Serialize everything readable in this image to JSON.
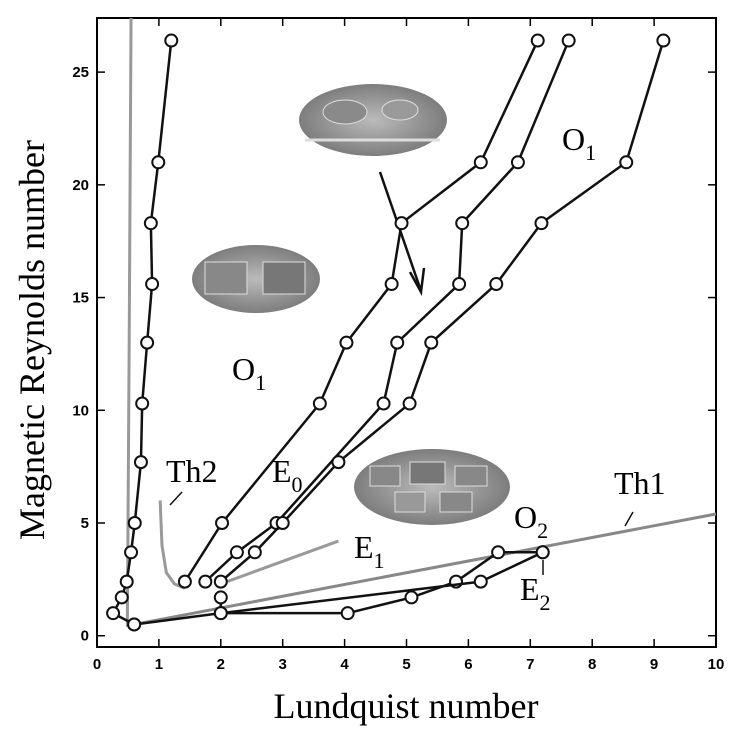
{
  "chart_data": {
    "type": "line",
    "xlabel": "Lundquist number",
    "ylabel": "Magnetic Reynolds number",
    "xlim": [
      0,
      10
    ],
    "ylim": [
      -0.5,
      27.4
    ],
    "xticks": [
      0,
      1,
      2,
      3,
      4,
      5,
      6,
      7,
      8,
      9,
      10
    ],
    "yticks": [
      0,
      5,
      10,
      15,
      20,
      25
    ],
    "series": [
      {
        "color": "#999999",
        "markers": false,
        "x": [
          0.49,
          0.52,
          0.55
        ],
        "values": [
          0.4,
          13,
          27.4
        ]
      },
      {
        "color": "#999999",
        "markers": false,
        "x": [
          1.02,
          1.05,
          1.12,
          1.25,
          1.42
        ],
        "values": [
          6.0,
          4.0,
          2.8,
          2.3,
          2.1
        ]
      },
      {
        "color": "#999999",
        "markers": false,
        "x": [
          2.0,
          3.9
        ],
        "values": [
          2.3,
          4.2
        ]
      },
      {
        "color": "#888888",
        "markers": false,
        "x": [
          0.6,
          10
        ],
        "values": [
          0.5,
          5.4
        ]
      },
      {
        "color": "#111111",
        "markers": true,
        "x": [
          1.2,
          0.99,
          0.87,
          0.89,
          0.81,
          0.73,
          0.71,
          0.61,
          0.55,
          0.48,
          0.4,
          0.26,
          0.6
        ],
        "values": [
          26.4,
          21.0,
          18.3,
          15.6,
          13.0,
          10.3,
          7.7,
          5.0,
          3.7,
          2.4,
          1.7,
          1.0,
          0.5
        ]
      },
      {
        "color": "#111111",
        "markers": true,
        "x": [
          1.42,
          2.02,
          3.6,
          4.03,
          4.76,
          4.92,
          6.2,
          7.12
        ],
        "values": [
          2.4,
          5.0,
          10.3,
          13.0,
          15.6,
          18.3,
          21.0,
          26.4
        ]
      },
      {
        "color": "#111111",
        "markers": true,
        "x": [
          1.75,
          2.26,
          2.9,
          4.63,
          4.85,
          5.85,
          5.9,
          6.8,
          7.62
        ],
        "values": [
          2.4,
          3.7,
          5.0,
          10.3,
          13.0,
          15.6,
          18.3,
          21.0,
          26.4
        ]
      },
      {
        "color": "#111111",
        "markers": true,
        "x": [
          2.0,
          2.55,
          3.0,
          3.9,
          5.05,
          5.4,
          6.45,
          7.18,
          8.55,
          9.15
        ],
        "values": [
          2.4,
          3.7,
          5.0,
          7.7,
          10.3,
          13.0,
          15.6,
          18.3,
          21.0,
          26.4
        ]
      },
      {
        "color": "#111111",
        "markers": true,
        "x": [
          0.6,
          2.0,
          4.05,
          5.08,
          5.8,
          6.48,
          7.2
        ],
        "values": [
          0.5,
          1.0,
          1.0,
          1.7,
          2.4,
          3.7,
          3.7
        ]
      },
      {
        "color": "#111111",
        "markers": true,
        "x": [
          2.0,
          2.0,
          6.2,
          7.2
        ],
        "values": [
          1.7,
          1.0,
          2.4,
          3.7
        ]
      }
    ],
    "annotations": [
      {
        "text": "O",
        "sub": "1"
      },
      {
        "text": "O",
        "sub": "1"
      },
      {
        "text": "Th2"
      },
      {
        "text": "E",
        "sub": "0"
      },
      {
        "text": "E",
        "sub": "1"
      },
      {
        "text": "O",
        "sub": "2"
      },
      {
        "text": "E",
        "sub": "2"
      },
      {
        "text": "Th1"
      }
    ]
  }
}
